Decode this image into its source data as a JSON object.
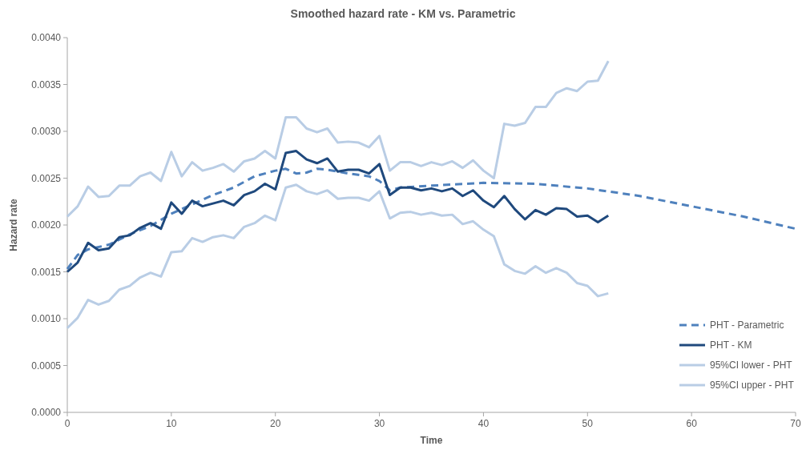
{
  "chart_data": {
    "type": "line",
    "title": "Smoothed hazard rate - KM vs. Parametric",
    "xlabel": "Time",
    "ylabel": "Hazard rate",
    "xlim": [
      0,
      70
    ],
    "xticks": [
      0,
      10,
      20,
      30,
      40,
      50,
      60,
      70
    ],
    "ylim": [
      0,
      0.004
    ],
    "yticks": [
      {
        "value": 0,
        "label": "0.0000"
      },
      {
        "value": 0.0005,
        "label": "0.0005"
      },
      {
        "value": 0.001,
        "label": "0.0010"
      },
      {
        "value": 0.0015,
        "label": "0.0015"
      },
      {
        "value": 0.002,
        "label": "0.0020"
      },
      {
        "value": 0.0025,
        "label": "0.0025"
      },
      {
        "value": 0.003,
        "label": "0.0030"
      },
      {
        "value": 0.0035,
        "label": "0.0035"
      },
      {
        "value": 0.004,
        "label": "0.0040"
      }
    ],
    "grid": false,
    "legend": "right",
    "marker": "none",
    "series": [
      {
        "name": "PHT - Parametric",
        "color": "#4f81bd",
        "line_style": "dashed",
        "x": [
          0,
          1,
          2,
          4,
          6,
          8,
          10,
          12,
          14,
          16,
          18,
          20,
          21,
          22,
          23,
          24,
          25,
          27,
          29,
          30,
          31,
          32,
          35,
          40,
          45,
          50,
          55,
          60,
          65,
          70
        ],
        "values": [
          0.00153,
          0.00168,
          0.00174,
          0.00179,
          0.0019,
          0.00199,
          0.00212,
          0.00222,
          0.00232,
          0.0024,
          0.00252,
          0.00258,
          0.0026,
          0.00255,
          0.00256,
          0.0026,
          0.00259,
          0.00255,
          0.00252,
          0.00247,
          0.00237,
          0.0024,
          0.00242,
          0.00245,
          0.00244,
          0.00239,
          0.00231,
          0.0022,
          0.00209,
          0.00196
        ]
      },
      {
        "name": "PHT - KM",
        "color": "#1f497d",
        "line_style": "solid",
        "x": [
          0,
          1,
          2,
          3,
          4,
          5,
          6,
          7,
          8,
          9,
          10,
          11,
          12,
          13,
          14,
          15,
          16,
          17,
          18,
          19,
          20,
          21,
          22,
          23,
          24,
          25,
          26,
          27,
          28,
          29,
          30,
          31,
          32,
          33,
          34,
          35,
          36,
          37,
          38,
          39,
          40,
          41,
          42,
          43,
          44,
          45,
          46,
          47,
          48,
          49,
          50,
          51,
          52
        ],
        "values": [
          0.0015,
          0.0016,
          0.00181,
          0.00173,
          0.00175,
          0.00187,
          0.00189,
          0.00197,
          0.00202,
          0.00196,
          0.00224,
          0.00212,
          0.00226,
          0.0022,
          0.00223,
          0.00226,
          0.00221,
          0.00232,
          0.00236,
          0.00244,
          0.00238,
          0.00277,
          0.00279,
          0.0027,
          0.00266,
          0.00271,
          0.00257,
          0.00259,
          0.00259,
          0.00255,
          0.00265,
          0.00232,
          0.0024,
          0.0024,
          0.00237,
          0.00239,
          0.00236,
          0.00239,
          0.00231,
          0.00237,
          0.00226,
          0.00219,
          0.00231,
          0.00217,
          0.00206,
          0.00216,
          0.00211,
          0.00218,
          0.00217,
          0.00209,
          0.0021,
          0.00203,
          0.0021
        ]
      },
      {
        "name": "95%CI lower - PHT",
        "color": "#b9cde5",
        "line_style": "solid",
        "x": [
          0,
          1,
          2,
          3,
          4,
          5,
          6,
          7,
          8,
          9,
          10,
          11,
          12,
          13,
          14,
          15,
          16,
          17,
          18,
          19,
          20,
          21,
          22,
          23,
          24,
          25,
          26,
          27,
          28,
          29,
          30,
          31,
          32,
          33,
          34,
          35,
          36,
          37,
          38,
          39,
          40,
          41,
          42,
          43,
          44,
          45,
          46,
          47,
          48,
          49,
          50,
          51,
          52
        ],
        "values": [
          0.0009,
          0.00101,
          0.0012,
          0.00115,
          0.00119,
          0.00131,
          0.00135,
          0.00144,
          0.00149,
          0.00145,
          0.00171,
          0.00172,
          0.00186,
          0.00182,
          0.00187,
          0.00189,
          0.00186,
          0.00198,
          0.00202,
          0.0021,
          0.00205,
          0.0024,
          0.00243,
          0.00236,
          0.00233,
          0.00237,
          0.00228,
          0.00229,
          0.00229,
          0.00226,
          0.00236,
          0.00207,
          0.00213,
          0.00214,
          0.00211,
          0.00213,
          0.0021,
          0.00211,
          0.00201,
          0.00204,
          0.00195,
          0.00188,
          0.00158,
          0.00151,
          0.00148,
          0.00156,
          0.00149,
          0.00154,
          0.00149,
          0.00138,
          0.00135,
          0.00124,
          0.00127
        ]
      },
      {
        "name": "95%CI upper - PHT",
        "color": "#b9cde5",
        "line_style": "solid",
        "x": [
          0,
          1,
          2,
          3,
          4,
          5,
          6,
          7,
          8,
          9,
          10,
          11,
          12,
          13,
          14,
          15,
          16,
          17,
          18,
          19,
          20,
          21,
          22,
          23,
          24,
          25,
          26,
          27,
          28,
          29,
          30,
          31,
          32,
          33,
          34,
          35,
          36,
          37,
          38,
          39,
          40,
          41,
          42,
          43,
          44,
          45,
          46,
          47,
          48,
          49,
          50,
          51,
          52
        ],
        "values": [
          0.00209,
          0.0022,
          0.00241,
          0.0023,
          0.00231,
          0.00242,
          0.00242,
          0.00252,
          0.00256,
          0.00247,
          0.00278,
          0.00252,
          0.00267,
          0.00258,
          0.00261,
          0.00265,
          0.00257,
          0.00268,
          0.00271,
          0.00279,
          0.00271,
          0.00315,
          0.00315,
          0.00303,
          0.00299,
          0.00303,
          0.00288,
          0.00289,
          0.00288,
          0.00283,
          0.00295,
          0.00258,
          0.00267,
          0.00267,
          0.00263,
          0.00267,
          0.00264,
          0.00268,
          0.00261,
          0.00269,
          0.00258,
          0.0025,
          0.00308,
          0.00306,
          0.00309,
          0.00326,
          0.00326,
          0.00341,
          0.00346,
          0.00343,
          0.00353,
          0.00354,
          0.00375
        ]
      }
    ]
  }
}
